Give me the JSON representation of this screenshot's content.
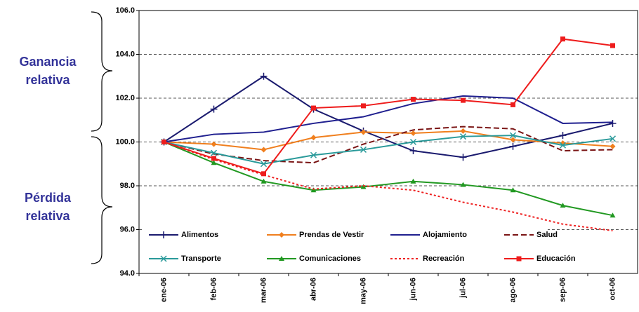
{
  "chart_data": {
    "type": "line",
    "categories": [
      "ene-06",
      "feb-06",
      "mar-06",
      "abr-06",
      "may-06",
      "jun-06",
      "jul-06",
      "ago-06",
      "sep-06",
      "oct-06"
    ],
    "series": [
      {
        "name": "Alimentos",
        "color": "#1a1a6e",
        "marker": "plus",
        "dash": "solid",
        "values": [
          100,
          101.5,
          103.0,
          101.5,
          100.5,
          99.6,
          99.3,
          99.8,
          100.3,
          100.85
        ]
      },
      {
        "name": "Prendas de Vestir",
        "color": "#f07f1e",
        "marker": "diamond",
        "dash": "solid",
        "values": [
          100,
          99.9,
          99.65,
          100.2,
          100.45,
          100.4,
          100.5,
          100.1,
          99.95,
          99.8
        ]
      },
      {
        "name": "Alojamiento",
        "color": "#1f1f8f",
        "marker": "none",
        "dash": "solid",
        "values": [
          100,
          100.35,
          100.45,
          100.85,
          101.15,
          101.75,
          102.1,
          102.0,
          100.85,
          100.9
        ]
      },
      {
        "name": "Salud",
        "color": "#7a1414",
        "marker": "none",
        "dash": "dashed",
        "values": [
          100,
          99.45,
          99.15,
          99.05,
          99.9,
          100.55,
          100.7,
          100.6,
          99.6,
          99.65
        ]
      },
      {
        "name": "Transporte",
        "color": "#2a9a9a",
        "marker": "x",
        "dash": "solid",
        "values": [
          100,
          99.5,
          99.0,
          99.4,
          99.65,
          100.0,
          100.25,
          100.3,
          99.85,
          100.15
        ]
      },
      {
        "name": "Comunicaciones",
        "color": "#229922",
        "marker": "triangle",
        "dash": "solid",
        "values": [
          100,
          99.05,
          98.2,
          97.8,
          97.95,
          98.2,
          98.05,
          97.8,
          97.1,
          96.65
        ]
      },
      {
        "name": "Recreación",
        "color": "#ee2222",
        "marker": "none",
        "dash": "dotted",
        "values": [
          100,
          99.2,
          98.5,
          97.85,
          98.0,
          97.8,
          97.25,
          96.8,
          96.25,
          95.95
        ]
      },
      {
        "name": "Educación",
        "color": "#ee1c1c",
        "marker": "square",
        "dash": "solid",
        "values": [
          100,
          99.25,
          98.55,
          101.55,
          101.65,
          101.95,
          101.9,
          101.7,
          104.7,
          104.4
        ]
      }
    ],
    "ylim": [
      94,
      106
    ],
    "yticks": [
      {
        "value": 94,
        "label": "94.0"
      },
      {
        "value": 96,
        "label": "96.0"
      },
      {
        "value": 98,
        "label": "98.0"
      },
      {
        "value": 100,
        "label": "100.0"
      },
      {
        "value": 102,
        "label": "102.0"
      },
      {
        "value": 104,
        "label": "104.0"
      },
      {
        "value": 106,
        "label": "106.0"
      }
    ],
    "grid": true,
    "annotations": [
      {
        "lines": [
          "Ganancia",
          "relativa"
        ]
      },
      {
        "lines": [
          "Pérdida",
          "relativa"
        ]
      }
    ]
  }
}
